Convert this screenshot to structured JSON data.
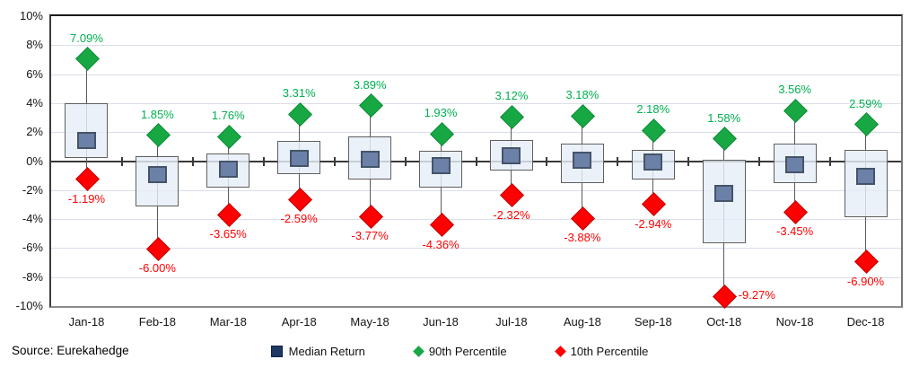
{
  "chart_data": {
    "type": "box-whisker",
    "categories": [
      "Jan-18",
      "Feb-18",
      "Mar-18",
      "Apr-18",
      "May-18",
      "Jun-18",
      "Jul-18",
      "Aug-18",
      "Sep-18",
      "Oct-18",
      "Nov-18",
      "Dec-18"
    ],
    "series": [
      {
        "name": "Median Return",
        "marker": "square",
        "color": "#1F3864",
        "values": [
          1.45,
          -0.95,
          -0.55,
          0.2,
          0.1,
          -0.3,
          0.35,
          0.05,
          -0.05,
          -2.2,
          -0.25,
          -1.05
        ]
      },
      {
        "name": "90th Percentile",
        "marker": "diamond",
        "color": "#00B050",
        "values": [
          7.09,
          1.85,
          1.76,
          3.31,
          3.89,
          1.93,
          3.12,
          3.18,
          2.18,
          1.58,
          3.56,
          2.59
        ],
        "labels": [
          "7.09%",
          "1.85%",
          "1.76%",
          "3.31%",
          "3.89%",
          "1.93%",
          "3.12%",
          "3.18%",
          "2.18%",
          "1.58%",
          "3.56%",
          "2.59%"
        ]
      },
      {
        "name": "10th Percentile",
        "marker": "diamond",
        "color": "#FF0000",
        "values": [
          -1.19,
          -6.0,
          -3.65,
          -2.59,
          -3.77,
          -4.36,
          -2.32,
          -3.88,
          -2.94,
          -9.27,
          -3.45,
          -6.9
        ],
        "labels": [
          "-1.19%",
          "-6.00%",
          "-3.65%",
          "-2.59%",
          "-3.77%",
          "-4.36%",
          "-2.32%",
          "-3.88%",
          "-2.94%",
          "-9.27%",
          "-3.45%",
          "-6.90%"
        ],
        "label_placement": [
          "below",
          "below",
          "below",
          "below",
          "below",
          "below",
          "below",
          "below",
          "below",
          "right",
          "below",
          "below"
        ]
      }
    ],
    "box": {
      "q3": [
        4.0,
        0.35,
        0.55,
        1.4,
        1.7,
        0.7,
        1.45,
        1.2,
        0.75,
        0.1,
        1.2,
        0.8
      ],
      "q1": [
        0.2,
        -3.15,
        -1.85,
        -0.9,
        -1.25,
        -1.85,
        -0.65,
        -1.5,
        -1.3,
        -5.65,
        -1.5,
        -3.9
      ]
    },
    "ylim": [
      -10,
      10
    ],
    "ytick_step": 2,
    "ytick_labels": [
      "10%",
      "8%",
      "6%",
      "4%",
      "2%",
      "0%",
      "-2%",
      "-4%",
      "-6%",
      "-8%",
      "-10%"
    ],
    "grid": true,
    "legend_position": "bottom"
  },
  "footer": {
    "source": "Source: Eurekahedge"
  },
  "colors": {
    "box_fill": "#E7EEF7",
    "box_border": "#5F5F5F",
    "median_fill": "#6C81A7",
    "median_border": "#44546A",
    "legend_median_square": "#1F3864",
    "green": "#00B050",
    "red": "#FF0000",
    "gridline": "#D9DEE8",
    "axis": "#3A3A3A"
  }
}
